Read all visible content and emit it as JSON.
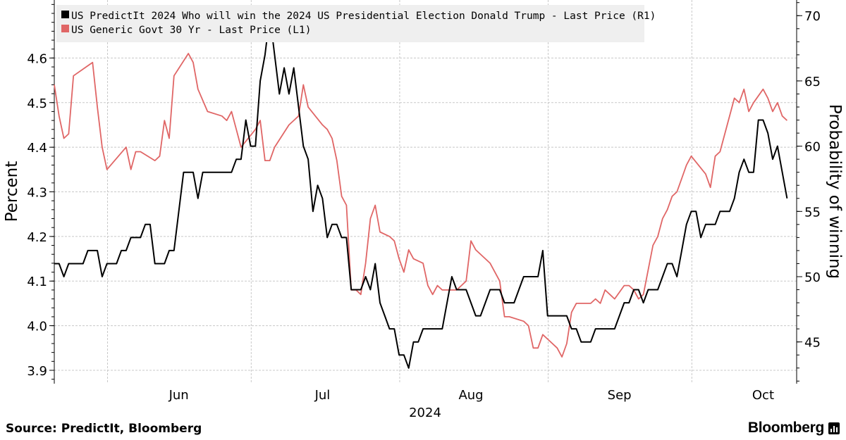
{
  "chart_data": {
    "type": "line",
    "title": "",
    "date_year": "2024",
    "x_date_range": [
      "2024-05-20",
      "2024-10-22"
    ],
    "x_ticks": [
      {
        "date": "2024-06-01",
        "label": "Jun"
      },
      {
        "date": "2024-07-01",
        "label": "Jul"
      },
      {
        "date": "2024-08-01",
        "label": "Aug"
      },
      {
        "date": "2024-09-01",
        "label": "Sep"
      },
      {
        "date": "2024-10-01",
        "label": "Oct"
      }
    ],
    "month_boundaries": [
      "2024-06-01",
      "2024-07-01",
      "2024-08-01",
      "2024-09-01",
      "2024-10-01"
    ],
    "xlabel": "2024",
    "ylabel_left": "Percent",
    "ylabel_right": "Probability of winning",
    "ylim_left": [
      3.87,
      4.73
    ],
    "ylim_right": [
      41.8,
      71.2
    ],
    "yticks_left": [
      "3.9",
      "4.0",
      "4.1",
      "4.2",
      "4.3",
      "4.4",
      "4.5",
      "4.6"
    ],
    "yticks_right": [
      "45",
      "50",
      "55",
      "60",
      "65",
      "70"
    ],
    "grid": true,
    "legend_position": "top-left",
    "series": [
      {
        "name": "US PredictIt 2024 Who will win the 2024 US Presidential Election Donald Trump - Last Price (R1)",
        "axis": "right",
        "color": "#000000",
        "points": [
          [
            "2024-05-20",
            51
          ],
          [
            "2024-05-21",
            51
          ],
          [
            "2024-05-22",
            50
          ],
          [
            "2024-05-23",
            51
          ],
          [
            "2024-05-24",
            51
          ],
          [
            "2024-05-26",
            51
          ],
          [
            "2024-05-27",
            52
          ],
          [
            "2024-05-29",
            52
          ],
          [
            "2024-05-30",
            50
          ],
          [
            "2024-05-31",
            51
          ],
          [
            "2024-06-02",
            51
          ],
          [
            "2024-06-03",
            52
          ],
          [
            "2024-06-04",
            52
          ],
          [
            "2024-06-05",
            53
          ],
          [
            "2024-06-07",
            53
          ],
          [
            "2024-06-08",
            54
          ],
          [
            "2024-06-09",
            54
          ],
          [
            "2024-06-10",
            51
          ],
          [
            "2024-06-12",
            51
          ],
          [
            "2024-06-13",
            52
          ],
          [
            "2024-06-14",
            52
          ],
          [
            "2024-06-16",
            58
          ],
          [
            "2024-06-18",
            58
          ],
          [
            "2024-06-19",
            56
          ],
          [
            "2024-06-20",
            58
          ],
          [
            "2024-06-22",
            58
          ],
          [
            "2024-06-24",
            58
          ],
          [
            "2024-06-26",
            58
          ],
          [
            "2024-06-27",
            59
          ],
          [
            "2024-06-28",
            59
          ],
          [
            "2024-06-29",
            62
          ],
          [
            "2024-06-30",
            60
          ],
          [
            "2024-07-01",
            60
          ],
          [
            "2024-07-02",
            65
          ],
          [
            "2024-07-03",
            67
          ],
          [
            "2024-07-04",
            70
          ],
          [
            "2024-07-06",
            64
          ],
          [
            "2024-07-07",
            66
          ],
          [
            "2024-07-08",
            64
          ],
          [
            "2024-07-09",
            66
          ],
          [
            "2024-07-10",
            63
          ],
          [
            "2024-07-11",
            60
          ],
          [
            "2024-07-12",
            59
          ],
          [
            "2024-07-13",
            55
          ],
          [
            "2024-07-14",
            57
          ],
          [
            "2024-07-15",
            56
          ],
          [
            "2024-07-16",
            53
          ],
          [
            "2024-07-17",
            54
          ],
          [
            "2024-07-18",
            54
          ],
          [
            "2024-07-19",
            53
          ],
          [
            "2024-07-20",
            53
          ],
          [
            "2024-07-21",
            49
          ],
          [
            "2024-07-23",
            49
          ],
          [
            "2024-07-24",
            50
          ],
          [
            "2024-07-25",
            49
          ],
          [
            "2024-07-26",
            51
          ],
          [
            "2024-07-27",
            48
          ],
          [
            "2024-07-28",
            47
          ],
          [
            "2024-07-29",
            46
          ],
          [
            "2024-07-30",
            46
          ],
          [
            "2024-07-31",
            44
          ],
          [
            "2024-08-01",
            44
          ],
          [
            "2024-08-02",
            43
          ],
          [
            "2024-08-03",
            45
          ],
          [
            "2024-08-04",
            45
          ],
          [
            "2024-08-05",
            46
          ],
          [
            "2024-08-07",
            46
          ],
          [
            "2024-08-09",
            46
          ],
          [
            "2024-08-10",
            48
          ],
          [
            "2024-08-11",
            50
          ],
          [
            "2024-08-12",
            49
          ],
          [
            "2024-08-14",
            49
          ],
          [
            "2024-08-16",
            47
          ],
          [
            "2024-08-17",
            47
          ],
          [
            "2024-08-18",
            48
          ],
          [
            "2024-08-19",
            49
          ],
          [
            "2024-08-21",
            49
          ],
          [
            "2024-08-22",
            48
          ],
          [
            "2024-08-24",
            48
          ],
          [
            "2024-08-25",
            49
          ],
          [
            "2024-08-26",
            50
          ],
          [
            "2024-08-29",
            50
          ],
          [
            "2024-08-30",
            52
          ],
          [
            "2024-08-31",
            47
          ],
          [
            "2024-09-02",
            47
          ],
          [
            "2024-09-04",
            47
          ],
          [
            "2024-09-05",
            46
          ],
          [
            "2024-09-06",
            46
          ],
          [
            "2024-09-07",
            45
          ],
          [
            "2024-09-09",
            45
          ],
          [
            "2024-09-10",
            46
          ],
          [
            "2024-09-12",
            46
          ],
          [
            "2024-09-14",
            46
          ],
          [
            "2024-09-15",
            47
          ],
          [
            "2024-09-16",
            48
          ],
          [
            "2024-09-17",
            48
          ],
          [
            "2024-09-18",
            49
          ],
          [
            "2024-09-19",
            49
          ],
          [
            "2024-09-20",
            48
          ],
          [
            "2024-09-21",
            49
          ],
          [
            "2024-09-23",
            49
          ],
          [
            "2024-09-24",
            50
          ],
          [
            "2024-09-25",
            51
          ],
          [
            "2024-09-26",
            51
          ],
          [
            "2024-09-27",
            50
          ],
          [
            "2024-09-28",
            52
          ],
          [
            "2024-09-29",
            54
          ],
          [
            "2024-09-30",
            55
          ],
          [
            "2024-10-01",
            55
          ],
          [
            "2024-10-02",
            53
          ],
          [
            "2024-10-03",
            54
          ],
          [
            "2024-10-04",
            54
          ],
          [
            "2024-10-05",
            54
          ],
          [
            "2024-10-06",
            55
          ],
          [
            "2024-10-08",
            55
          ],
          [
            "2024-10-09",
            56
          ],
          [
            "2024-10-10",
            58
          ],
          [
            "2024-10-11",
            59
          ],
          [
            "2024-10-12",
            58
          ],
          [
            "2024-10-13",
            58
          ],
          [
            "2024-10-14",
            62
          ],
          [
            "2024-10-15",
            62
          ],
          [
            "2024-10-16",
            61
          ],
          [
            "2024-10-17",
            59
          ],
          [
            "2024-10-18",
            60
          ],
          [
            "2024-10-19",
            58
          ],
          [
            "2024-10-20",
            56
          ]
        ]
      },
      {
        "name": "US Generic Govt 30 Yr - Last Price (L1)",
        "axis": "left",
        "color": "#e06666",
        "points": [
          [
            "2024-05-20",
            4.54
          ],
          [
            "2024-05-21",
            4.47
          ],
          [
            "2024-05-22",
            4.42
          ],
          [
            "2024-05-23",
            4.43
          ],
          [
            "2024-05-24",
            4.56
          ],
          [
            "2024-05-28",
            4.59
          ],
          [
            "2024-05-29",
            4.49
          ],
          [
            "2024-05-30",
            4.4
          ],
          [
            "2024-05-31",
            4.35
          ],
          [
            "2024-06-04",
            4.4
          ],
          [
            "2024-06-05",
            4.35
          ],
          [
            "2024-06-06",
            4.39
          ],
          [
            "2024-06-07",
            4.39
          ],
          [
            "2024-06-10",
            4.37
          ],
          [
            "2024-06-11",
            4.38
          ],
          [
            "2024-06-12",
            4.46
          ],
          [
            "2024-06-13",
            4.42
          ],
          [
            "2024-06-14",
            4.56
          ],
          [
            "2024-06-17",
            4.61
          ],
          [
            "2024-06-18",
            4.59
          ],
          [
            "2024-06-19",
            4.53
          ],
          [
            "2024-06-21",
            4.48
          ],
          [
            "2024-06-24",
            4.47
          ],
          [
            "2024-06-25",
            4.46
          ],
          [
            "2024-06-26",
            4.48
          ],
          [
            "2024-06-27",
            4.44
          ],
          [
            "2024-06-28",
            4.4
          ],
          [
            "2024-07-01",
            4.44
          ],
          [
            "2024-07-02",
            4.46
          ],
          [
            "2024-07-03",
            4.37
          ],
          [
            "2024-07-04",
            4.37
          ],
          [
            "2024-07-05",
            4.4
          ],
          [
            "2024-07-08",
            4.45
          ],
          [
            "2024-07-09",
            4.46
          ],
          [
            "2024-07-10",
            4.47
          ],
          [
            "2024-07-11",
            4.54
          ],
          [
            "2024-07-12",
            4.49
          ],
          [
            "2024-07-15",
            4.45
          ],
          [
            "2024-07-16",
            4.44
          ],
          [
            "2024-07-17",
            4.42
          ],
          [
            "2024-07-18",
            4.37
          ],
          [
            "2024-07-19",
            4.29
          ],
          [
            "2024-07-20",
            4.27
          ],
          [
            "2024-07-21",
            4.08
          ],
          [
            "2024-07-22",
            4.08
          ],
          [
            "2024-07-23",
            4.07
          ],
          [
            "2024-07-24",
            4.14
          ],
          [
            "2024-07-25",
            4.24
          ],
          [
            "2024-07-26",
            4.27
          ],
          [
            "2024-07-27",
            4.21
          ],
          [
            "2024-07-29",
            4.2
          ],
          [
            "2024-07-30",
            4.19
          ],
          [
            "2024-07-31",
            4.15
          ],
          [
            "2024-08-01",
            4.12
          ],
          [
            "2024-08-02",
            4.17
          ],
          [
            "2024-08-03",
            4.15
          ],
          [
            "2024-08-05",
            4.14
          ],
          [
            "2024-08-06",
            4.09
          ],
          [
            "2024-08-07",
            4.07
          ],
          [
            "2024-08-08",
            4.09
          ],
          [
            "2024-08-09",
            4.08
          ],
          [
            "2024-08-12",
            4.08
          ],
          [
            "2024-08-13",
            4.09
          ],
          [
            "2024-08-14",
            4.1
          ],
          [
            "2024-08-15",
            4.19
          ],
          [
            "2024-08-16",
            4.17
          ],
          [
            "2024-08-19",
            4.14
          ],
          [
            "2024-08-20",
            4.12
          ],
          [
            "2024-08-21",
            4.1
          ],
          [
            "2024-08-22",
            4.02
          ],
          [
            "2024-08-23",
            4.02
          ],
          [
            "2024-08-26",
            4.01
          ],
          [
            "2024-08-27",
            4.0
          ],
          [
            "2024-08-28",
            3.95
          ],
          [
            "2024-08-29",
            3.95
          ],
          [
            "2024-08-30",
            3.98
          ],
          [
            "2024-08-31",
            3.97
          ],
          [
            "2024-09-02",
            3.95
          ],
          [
            "2024-09-03",
            3.93
          ],
          [
            "2024-09-04",
            3.96
          ],
          [
            "2024-09-05",
            4.03
          ],
          [
            "2024-09-06",
            4.05
          ],
          [
            "2024-09-09",
            4.05
          ],
          [
            "2024-09-10",
            4.06
          ],
          [
            "2024-09-11",
            4.05
          ],
          [
            "2024-09-12",
            4.08
          ],
          [
            "2024-09-13",
            4.07
          ],
          [
            "2024-09-14",
            4.06
          ],
          [
            "2024-09-16",
            4.09
          ],
          [
            "2024-09-17",
            4.09
          ],
          [
            "2024-09-18",
            4.08
          ],
          [
            "2024-09-19",
            4.06
          ],
          [
            "2024-09-20",
            4.07
          ],
          [
            "2024-09-22",
            4.18
          ],
          [
            "2024-09-23",
            4.2
          ],
          [
            "2024-09-24",
            4.24
          ],
          [
            "2024-09-25",
            4.26
          ],
          [
            "2024-09-26",
            4.29
          ],
          [
            "2024-09-27",
            4.3
          ],
          [
            "2024-09-28",
            4.33
          ],
          [
            "2024-09-29",
            4.36
          ],
          [
            "2024-09-30",
            4.38
          ],
          [
            "2024-10-03",
            4.34
          ],
          [
            "2024-10-04",
            4.31
          ],
          [
            "2024-10-05",
            4.38
          ],
          [
            "2024-10-06",
            4.39
          ],
          [
            "2024-10-09",
            4.51
          ],
          [
            "2024-10-10",
            4.5
          ],
          [
            "2024-10-11",
            4.53
          ],
          [
            "2024-10-12",
            4.48
          ],
          [
            "2024-10-13",
            4.5
          ],
          [
            "2024-10-15",
            4.53
          ],
          [
            "2024-10-16",
            4.51
          ],
          [
            "2024-10-17",
            4.48
          ],
          [
            "2024-10-18",
            4.5
          ],
          [
            "2024-10-19",
            4.47
          ],
          [
            "2024-10-20",
            4.46
          ]
        ]
      }
    ]
  },
  "footer": {
    "source": "Source: PredictIt, Bloomberg",
    "brand": "Bloomberg"
  }
}
